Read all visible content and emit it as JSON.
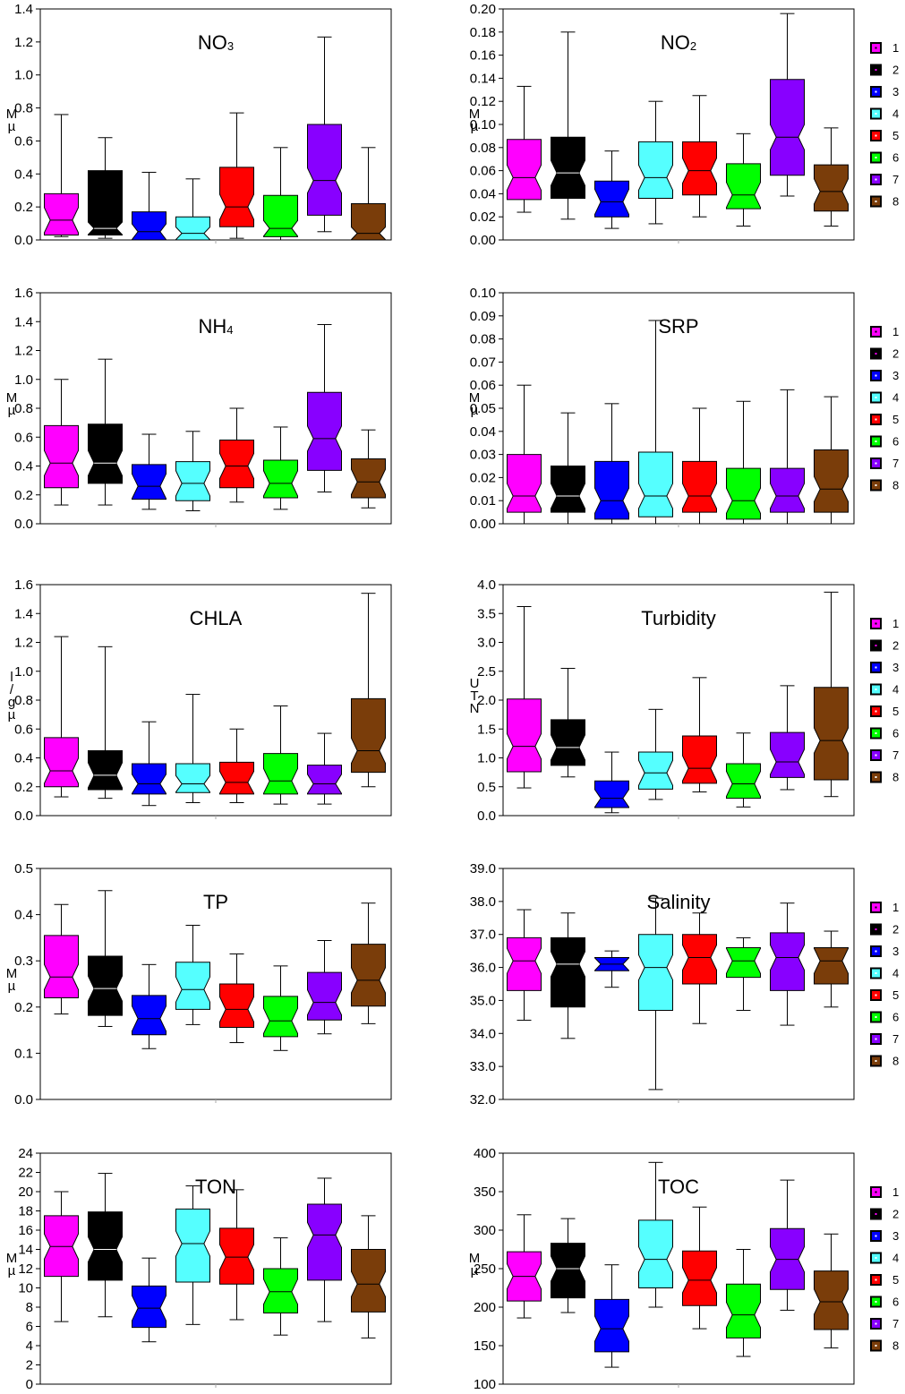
{
  "colors": [
    "#ff00ff",
    "#000000",
    "#0000ff",
    "#55ffff",
    "#ff0000",
    "#00ff00",
    "#8800ff",
    "#7a3d0a"
  ],
  "chart_data": [
    {
      "type": "box",
      "title": "NO3",
      "title_main": "NO",
      "title_sub": "3",
      "ylabel": "µM",
      "ylim": [
        0,
        1.4
      ],
      "yticks": [
        0.0,
        0.2,
        0.4,
        0.6,
        0.8,
        1.0,
        1.2,
        1.4
      ],
      "tick_decimals": 1,
      "legend": false,
      "groups": [
        {
          "name": "1",
          "min": 0.02,
          "q1": 0.03,
          "median": 0.12,
          "q3": 0.28,
          "max": 0.76
        },
        {
          "name": "2",
          "min": 0.01,
          "q1": 0.03,
          "median": 0.07,
          "q3": 0.42,
          "max": 0.62
        },
        {
          "name": "3",
          "min": 0.0,
          "q1": 0.0,
          "median": 0.05,
          "q3": 0.17,
          "max": 0.41
        },
        {
          "name": "4",
          "min": 0.0,
          "q1": 0.0,
          "median": 0.04,
          "q3": 0.14,
          "max": 0.37
        },
        {
          "name": "5",
          "min": 0.01,
          "q1": 0.08,
          "median": 0.2,
          "q3": 0.44,
          "max": 0.77
        },
        {
          "name": "6",
          "min": 0.0,
          "q1": 0.02,
          "median": 0.07,
          "q3": 0.27,
          "max": 0.56
        },
        {
          "name": "7",
          "min": 0.05,
          "q1": 0.15,
          "median": 0.36,
          "q3": 0.7,
          "max": 1.23
        },
        {
          "name": "8",
          "min": 0.0,
          "q1": 0.0,
          "median": 0.04,
          "q3": 0.22,
          "max": 0.56
        }
      ]
    },
    {
      "type": "box",
      "title": "NO2",
      "title_main": "NO",
      "title_sub": "2",
      "ylabel": "µM",
      "ylim": [
        0,
        0.2
      ],
      "yticks": [
        0.0,
        0.02,
        0.04,
        0.06,
        0.08,
        0.1,
        0.12,
        0.14,
        0.16,
        0.18,
        0.2
      ],
      "tick_decimals": 2,
      "legend": true,
      "groups": [
        {
          "name": "1",
          "min": 0.024,
          "q1": 0.035,
          "median": 0.054,
          "q3": 0.087,
          "max": 0.133
        },
        {
          "name": "2",
          "min": 0.018,
          "q1": 0.036,
          "median": 0.058,
          "q3": 0.089,
          "max": 0.18
        },
        {
          "name": "3",
          "min": 0.01,
          "q1": 0.02,
          "median": 0.033,
          "q3": 0.051,
          "max": 0.077
        },
        {
          "name": "4",
          "min": 0.014,
          "q1": 0.036,
          "median": 0.054,
          "q3": 0.085,
          "max": 0.12
        },
        {
          "name": "5",
          "min": 0.02,
          "q1": 0.039,
          "median": 0.06,
          "q3": 0.085,
          "max": 0.125
        },
        {
          "name": "6",
          "min": 0.012,
          "q1": 0.027,
          "median": 0.039,
          "q3": 0.066,
          "max": 0.092
        },
        {
          "name": "7",
          "min": 0.038,
          "q1": 0.056,
          "median": 0.089,
          "q3": 0.139,
          "max": 0.196
        },
        {
          "name": "8",
          "min": 0.012,
          "q1": 0.025,
          "median": 0.042,
          "q3": 0.065,
          "max": 0.097
        }
      ]
    },
    {
      "type": "box",
      "title": "NH4",
      "title_main": "NH",
      "title_sub": "4",
      "ylabel": "µM",
      "ylim": [
        0,
        1.6
      ],
      "yticks": [
        0.0,
        0.2,
        0.4,
        0.6,
        0.8,
        1.0,
        1.2,
        1.4,
        1.6
      ],
      "tick_decimals": 1,
      "legend": false,
      "groups": [
        {
          "name": "1",
          "min": 0.13,
          "q1": 0.25,
          "median": 0.42,
          "q3": 0.68,
          "max": 1.0
        },
        {
          "name": "2",
          "min": 0.13,
          "q1": 0.28,
          "median": 0.42,
          "q3": 0.69,
          "max": 1.14
        },
        {
          "name": "3",
          "min": 0.1,
          "q1": 0.17,
          "median": 0.26,
          "q3": 0.41,
          "max": 0.62
        },
        {
          "name": "4",
          "min": 0.09,
          "q1": 0.16,
          "median": 0.28,
          "q3": 0.43,
          "max": 0.64
        },
        {
          "name": "5",
          "min": 0.15,
          "q1": 0.25,
          "median": 0.4,
          "q3": 0.58,
          "max": 0.8
        },
        {
          "name": "6",
          "min": 0.1,
          "q1": 0.18,
          "median": 0.28,
          "q3": 0.44,
          "max": 0.67
        },
        {
          "name": "7",
          "min": 0.22,
          "q1": 0.37,
          "median": 0.59,
          "q3": 0.91,
          "max": 1.38
        },
        {
          "name": "8",
          "min": 0.11,
          "q1": 0.18,
          "median": 0.29,
          "q3": 0.45,
          "max": 0.65
        }
      ]
    },
    {
      "type": "box",
      "title": "SRP",
      "ylabel": "µM",
      "ylim": [
        0,
        0.1
      ],
      "yticks": [
        0.0,
        0.01,
        0.02,
        0.03,
        0.04,
        0.05,
        0.06,
        0.07,
        0.08,
        0.09,
        0.1
      ],
      "tick_decimals": 2,
      "legend": true,
      "groups": [
        {
          "name": "1",
          "min": 0.0,
          "q1": 0.005,
          "median": 0.012,
          "q3": 0.03,
          "max": 0.06
        },
        {
          "name": "2",
          "min": 0.0,
          "q1": 0.005,
          "median": 0.012,
          "q3": 0.025,
          "max": 0.048
        },
        {
          "name": "3",
          "min": 0.0,
          "q1": 0.002,
          "median": 0.01,
          "q3": 0.027,
          "max": 0.052
        },
        {
          "name": "4",
          "min": 0.0,
          "q1": 0.003,
          "median": 0.012,
          "q3": 0.031,
          "max": 0.088
        },
        {
          "name": "5",
          "min": 0.0,
          "q1": 0.005,
          "median": 0.012,
          "q3": 0.027,
          "max": 0.05
        },
        {
          "name": "6",
          "min": 0.0,
          "q1": 0.002,
          "median": 0.01,
          "q3": 0.024,
          "max": 0.053
        },
        {
          "name": "7",
          "min": 0.0,
          "q1": 0.005,
          "median": 0.012,
          "q3": 0.024,
          "max": 0.058
        },
        {
          "name": "8",
          "min": 0.0,
          "q1": 0.005,
          "median": 0.015,
          "q3": 0.032,
          "max": 0.055
        }
      ]
    },
    {
      "type": "box",
      "title": "CHLA",
      "ylabel": "µg/l",
      "ylim": [
        0,
        1.6
      ],
      "yticks": [
        0.0,
        0.2,
        0.4,
        0.6,
        0.8,
        1.0,
        1.2,
        1.4,
        1.6
      ],
      "tick_decimals": 1,
      "legend": false,
      "groups": [
        {
          "name": "1",
          "min": 0.13,
          "q1": 0.2,
          "median": 0.31,
          "q3": 0.54,
          "max": 1.24
        },
        {
          "name": "2",
          "min": 0.12,
          "q1": 0.18,
          "median": 0.28,
          "q3": 0.45,
          "max": 1.17
        },
        {
          "name": "3",
          "min": 0.07,
          "q1": 0.15,
          "median": 0.22,
          "q3": 0.36,
          "max": 0.65
        },
        {
          "name": "4",
          "min": 0.09,
          "q1": 0.16,
          "median": 0.22,
          "q3": 0.36,
          "max": 0.84
        },
        {
          "name": "5",
          "min": 0.09,
          "q1": 0.15,
          "median": 0.23,
          "q3": 0.37,
          "max": 0.6
        },
        {
          "name": "6",
          "min": 0.08,
          "q1": 0.15,
          "median": 0.24,
          "q3": 0.43,
          "max": 0.76
        },
        {
          "name": "7",
          "min": 0.08,
          "q1": 0.15,
          "median": 0.22,
          "q3": 0.35,
          "max": 0.57
        },
        {
          "name": "8",
          "min": 0.2,
          "q1": 0.3,
          "median": 0.45,
          "q3": 0.81,
          "max": 1.54
        }
      ]
    },
    {
      "type": "box",
      "title": "Turbidity",
      "ylabel": "NTU",
      "ylim": [
        0,
        4.0
      ],
      "yticks": [
        0.0,
        0.5,
        1.0,
        1.5,
        2.0,
        2.5,
        3.0,
        3.5,
        4.0
      ],
      "tick_decimals": 1,
      "legend": true,
      "groups": [
        {
          "name": "1",
          "min": 0.48,
          "q1": 0.76,
          "median": 1.2,
          "q3": 2.02,
          "max": 3.62
        },
        {
          "name": "2",
          "min": 0.67,
          "q1": 0.87,
          "median": 1.18,
          "q3": 1.66,
          "max": 2.55
        },
        {
          "name": "3",
          "min": 0.05,
          "q1": 0.14,
          "median": 0.3,
          "q3": 0.6,
          "max": 1.1
        },
        {
          "name": "4",
          "min": 0.28,
          "q1": 0.46,
          "median": 0.74,
          "q3": 1.1,
          "max": 1.84
        },
        {
          "name": "5",
          "min": 0.41,
          "q1": 0.56,
          "median": 0.82,
          "q3": 1.38,
          "max": 2.39
        },
        {
          "name": "6",
          "min": 0.15,
          "q1": 0.3,
          "median": 0.55,
          "q3": 0.9,
          "max": 1.43
        },
        {
          "name": "7",
          "min": 0.45,
          "q1": 0.66,
          "median": 0.93,
          "q3": 1.44,
          "max": 2.25
        },
        {
          "name": "8",
          "min": 0.33,
          "q1": 0.62,
          "median": 1.3,
          "q3": 2.22,
          "max": 3.87
        }
      ]
    },
    {
      "type": "box",
      "title": "TP",
      "ylabel": "µM",
      "ylim": [
        0,
        0.5
      ],
      "yticks": [
        0.0,
        0.1,
        0.2,
        0.3,
        0.4,
        0.5
      ],
      "tick_decimals": 1,
      "legend": false,
      "groups": [
        {
          "name": "1",
          "min": 0.185,
          "q1": 0.22,
          "median": 0.265,
          "q3": 0.355,
          "max": 0.422
        },
        {
          "name": "2",
          "min": 0.158,
          "q1": 0.182,
          "median": 0.24,
          "q3": 0.31,
          "max": 0.452
        },
        {
          "name": "3",
          "min": 0.11,
          "q1": 0.14,
          "median": 0.175,
          "q3": 0.225,
          "max": 0.292
        },
        {
          "name": "4",
          "min": 0.162,
          "q1": 0.195,
          "median": 0.238,
          "q3": 0.297,
          "max": 0.377
        },
        {
          "name": "5",
          "min": 0.123,
          "q1": 0.156,
          "median": 0.195,
          "q3": 0.25,
          "max": 0.315
        },
        {
          "name": "6",
          "min": 0.106,
          "q1": 0.136,
          "median": 0.17,
          "q3": 0.223,
          "max": 0.289
        },
        {
          "name": "7",
          "min": 0.142,
          "q1": 0.172,
          "median": 0.21,
          "q3": 0.275,
          "max": 0.344
        },
        {
          "name": "8",
          "min": 0.164,
          "q1": 0.202,
          "median": 0.258,
          "q3": 0.336,
          "max": 0.425
        }
      ]
    },
    {
      "type": "box",
      "title": "Salinity",
      "ylabel": "",
      "ylim": [
        32,
        39
      ],
      "yticks": [
        32.0,
        33.0,
        34.0,
        35.0,
        36.0,
        37.0,
        38.0,
        39.0
      ],
      "tick_decimals": 1,
      "legend": true,
      "groups": [
        {
          "name": "1",
          "min": 34.4,
          "q1": 35.3,
          "median": 36.2,
          "q3": 36.9,
          "max": 37.75
        },
        {
          "name": "2",
          "min": 33.85,
          "q1": 34.8,
          "median": 36.1,
          "q3": 36.9,
          "max": 37.65
        },
        {
          "name": "3",
          "min": 35.4,
          "q1": 35.9,
          "median": 36.1,
          "q3": 36.3,
          "max": 36.5
        },
        {
          "name": "4",
          "min": 32.3,
          "q1": 34.7,
          "median": 36.0,
          "q3": 37.0,
          "max": 38.1
        },
        {
          "name": "5",
          "min": 34.3,
          "q1": 35.5,
          "median": 36.3,
          "q3": 37.0,
          "max": 37.65
        },
        {
          "name": "6",
          "min": 34.7,
          "q1": 35.7,
          "median": 36.2,
          "q3": 36.6,
          "max": 36.9
        },
        {
          "name": "7",
          "min": 34.25,
          "q1": 35.3,
          "median": 36.3,
          "q3": 37.05,
          "max": 37.95
        },
        {
          "name": "8",
          "min": 34.8,
          "q1": 35.5,
          "median": 36.2,
          "q3": 36.6,
          "max": 37.1
        }
      ]
    },
    {
      "type": "box",
      "title": "TON",
      "ylabel": "µM",
      "ylim": [
        0,
        24
      ],
      "yticks": [
        0,
        2,
        4,
        6,
        8,
        10,
        12,
        14,
        16,
        18,
        20,
        22,
        24
      ],
      "tick_decimals": 0,
      "legend": false,
      "groups": [
        {
          "name": "1",
          "min": 6.5,
          "q1": 11.2,
          "median": 14.3,
          "q3": 17.5,
          "max": 20.0
        },
        {
          "name": "2",
          "min": 7.0,
          "q1": 10.8,
          "median": 14.0,
          "q3": 17.9,
          "max": 21.9
        },
        {
          "name": "3",
          "min": 4.4,
          "q1": 5.9,
          "median": 7.9,
          "q3": 10.2,
          "max": 13.1
        },
        {
          "name": "4",
          "min": 6.2,
          "q1": 10.6,
          "median": 14.6,
          "q3": 18.2,
          "max": 20.6
        },
        {
          "name": "5",
          "min": 6.7,
          "q1": 10.4,
          "median": 13.2,
          "q3": 16.2,
          "max": 20.2
        },
        {
          "name": "6",
          "min": 5.1,
          "q1": 7.4,
          "median": 9.6,
          "q3": 12.0,
          "max": 15.2
        },
        {
          "name": "7",
          "min": 6.5,
          "q1": 10.8,
          "median": 15.5,
          "q3": 18.7,
          "max": 21.4
        },
        {
          "name": "8",
          "min": 4.8,
          "q1": 7.5,
          "median": 10.4,
          "q3": 14.0,
          "max": 17.5
        }
      ]
    },
    {
      "type": "box",
      "title": "TOC",
      "ylabel": "µM",
      "ylim": [
        100,
        400
      ],
      "yticks": [
        100,
        150,
        200,
        250,
        300,
        350,
        400
      ],
      "tick_decimals": 0,
      "legend": true,
      "groups": [
        {
          "name": "1",
          "min": 186,
          "q1": 208,
          "median": 240,
          "q3": 272,
          "max": 320
        },
        {
          "name": "2",
          "min": 193,
          "q1": 212,
          "median": 250,
          "q3": 283,
          "max": 315
        },
        {
          "name": "3",
          "min": 122,
          "q1": 142,
          "median": 172,
          "q3": 210,
          "max": 255
        },
        {
          "name": "4",
          "min": 200,
          "q1": 225,
          "median": 262,
          "q3": 313,
          "max": 388
        },
        {
          "name": "5",
          "min": 172,
          "q1": 202,
          "median": 235,
          "q3": 273,
          "max": 330
        },
        {
          "name": "6",
          "min": 136,
          "q1": 160,
          "median": 190,
          "q3": 230,
          "max": 275
        },
        {
          "name": "7",
          "min": 196,
          "q1": 223,
          "median": 262,
          "q3": 302,
          "max": 365
        },
        {
          "name": "8",
          "min": 147,
          "q1": 171,
          "median": 207,
          "q3": 247,
          "max": 295
        }
      ]
    }
  ]
}
